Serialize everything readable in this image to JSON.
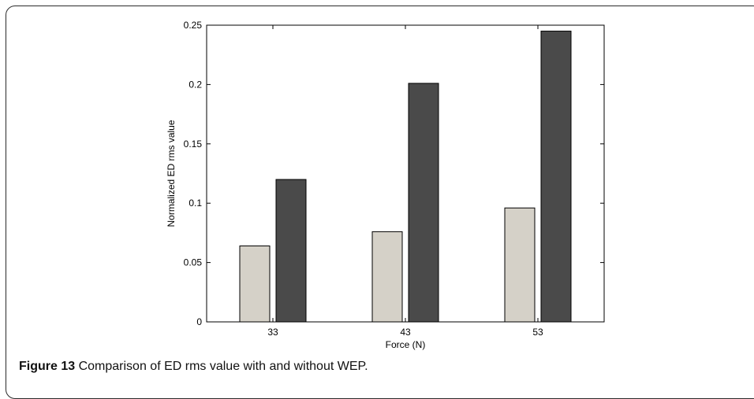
{
  "figure": {
    "caption_label": "Figure 13",
    "caption_text": " Comparison of ED rms value with and without WEP."
  },
  "chart_data": {
    "type": "bar",
    "categories": [
      "33",
      "43",
      "53"
    ],
    "series": [
      {
        "values": [
          0.064,
          0.076,
          0.096
        ],
        "color": "#d5d1c8"
      },
      {
        "values": [
          0.12,
          0.201,
          0.245
        ],
        "color": "#4a4a4a"
      }
    ],
    "xlabel": "Force (N)",
    "ylabel": "Normalized ED rms value",
    "ylim": [
      0,
      0.25
    ],
    "yticks": [
      0,
      0.05,
      0.1,
      0.15,
      0.2,
      0.25
    ],
    "ytick_labels": [
      "0",
      "0.05",
      "0.1",
      "0.15",
      "0.2",
      "0.25"
    ],
    "grid": false
  }
}
